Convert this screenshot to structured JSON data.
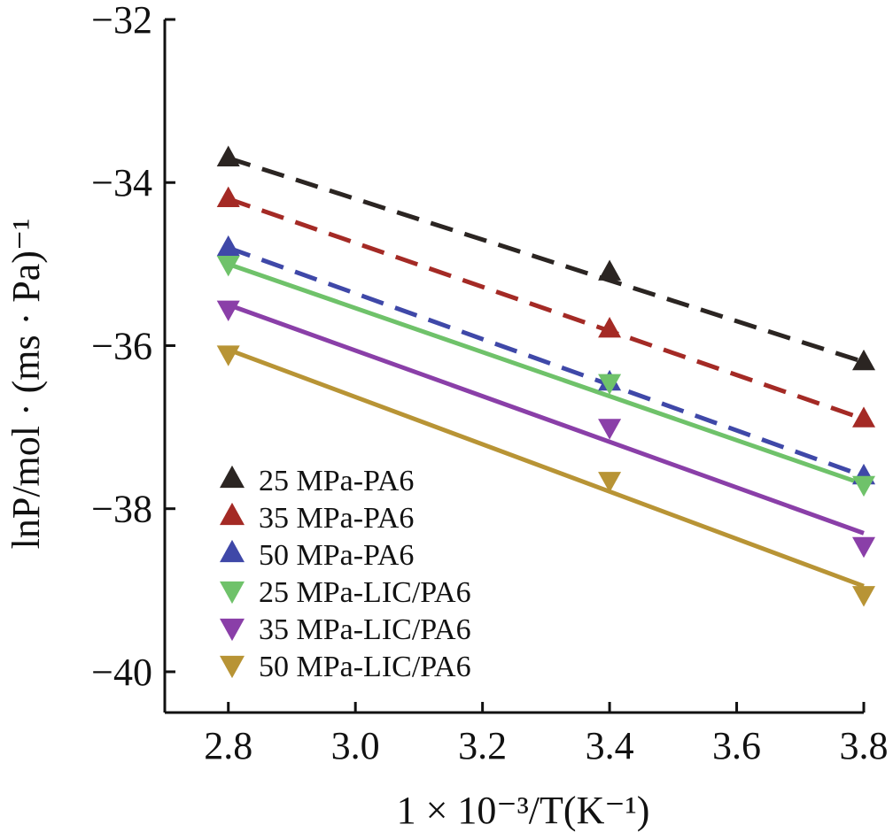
{
  "chart_data": {
    "type": "scatter",
    "title": "",
    "xlabel": "1 × 10⁻³/T(K⁻¹)",
    "ylabel": "lnP/mol · (ms · Pa)⁻¹",
    "xlim": [
      2.7,
      3.8
    ],
    "ylim": [
      -40.5,
      -32
    ],
    "x_ticks": [
      "2.8",
      "3.0",
      "3.2",
      "3.4",
      "3.6",
      "3.8"
    ],
    "y_ticks": [
      "−32",
      "−34",
      "−36",
      "−38",
      "−40"
    ],
    "x_tick_values": [
      2.8,
      3.0,
      3.2,
      3.4,
      3.6,
      3.8
    ],
    "y_tick_values": [
      -32,
      -34,
      -36,
      -38,
      -40
    ],
    "grid": false,
    "legend_position": "bottom-left",
    "series": [
      {
        "name": "25 MPa-PA6",
        "marker": "triangle-up",
        "line": "dashed",
        "color": "#2b2522",
        "x": [
          2.8,
          3.4,
          3.8
        ],
        "y": [
          -33.7,
          -35.1,
          -36.2
        ],
        "fit_y": [
          -33.7,
          -36.2
        ]
      },
      {
        "name": "35 MPa-PA6",
        "marker": "triangle-up",
        "line": "dashed",
        "color": "#a42a25",
        "x": [
          2.8,
          3.4,
          3.8
        ],
        "y": [
          -34.2,
          -35.8,
          -36.9
        ],
        "fit_y": [
          -34.2,
          -36.9
        ]
      },
      {
        "name": "50 MPa-PA6",
        "marker": "triangle-up",
        "line": "dashed",
        "color": "#3f48a8",
        "x": [
          2.8,
          3.4,
          3.8
        ],
        "y": [
          -34.8,
          -36.45,
          -37.6
        ],
        "fit_y": [
          -34.8,
          -37.6
        ]
      },
      {
        "name": "25 MPa-LIC/PA6",
        "marker": "triangle-down",
        "line": "solid",
        "color": "#6fc26a",
        "x": [
          2.8,
          3.4,
          3.8
        ],
        "y": [
          -35.0,
          -36.45,
          -37.7
        ],
        "fit_y": [
          -35.0,
          -37.7
        ]
      },
      {
        "name": "35 MPa-LIC/PA6",
        "marker": "triangle-down",
        "line": "solid",
        "color": "#8a3fa8",
        "x": [
          2.8,
          3.4,
          3.8
        ],
        "y": [
          -35.55,
          -37.0,
          -38.45
        ],
        "fit_y": [
          -35.5,
          -38.3
        ]
      },
      {
        "name": "50 MPa-LIC/PA6",
        "marker": "triangle-down",
        "line": "solid",
        "color": "#b89435",
        "x": [
          2.8,
          3.4,
          3.8
        ],
        "y": [
          -36.1,
          -37.65,
          -39.05
        ],
        "fit_y": [
          -36.05,
          -38.95
        ]
      }
    ]
  }
}
